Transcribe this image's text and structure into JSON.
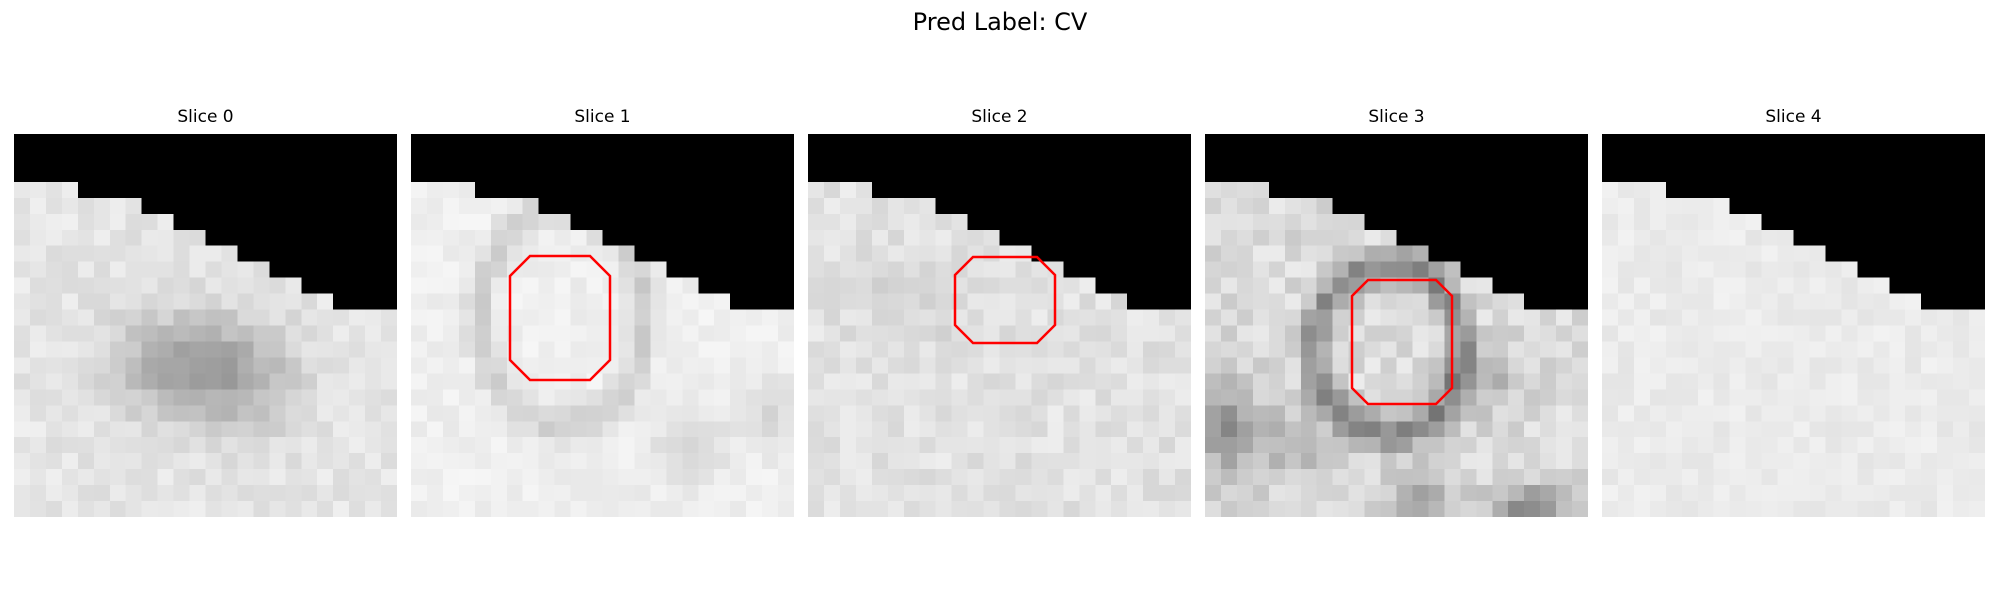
{
  "figure": {
    "title": "Pred Label: CV"
  },
  "panels": [
    {
      "title": "Slice 0",
      "contour": false,
      "theme": 0
    },
    {
      "title": "Slice 1",
      "contour": true,
      "theme": 1
    },
    {
      "title": "Slice 2",
      "contour": true,
      "theme": 2
    },
    {
      "title": "Slice 3",
      "contour": true,
      "theme": 3
    },
    {
      "title": "Slice 4",
      "contour": false,
      "theme": 4
    }
  ],
  "colors": {
    "background": "#ffffff",
    "mask": "#000000",
    "contour": "#ff0000"
  }
}
